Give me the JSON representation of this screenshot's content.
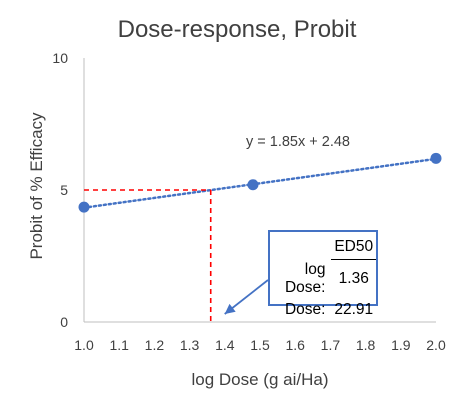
{
  "chart_data": {
    "type": "scatter",
    "title": "Dose-response, Probit",
    "xlabel": "log Dose (g ai/Ha)",
    "ylabel": "Probit of % Efficacy",
    "xlim": [
      1.0,
      2.0
    ],
    "ylim": [
      0,
      10
    ],
    "x_ticks": [
      "1.0",
      "1.1",
      "1.2",
      "1.3",
      "1.4",
      "1.5",
      "1.6",
      "1.7",
      "1.8",
      "1.9",
      "2.0"
    ],
    "y_ticks": [
      "0",
      "5",
      "10"
    ],
    "series": [
      {
        "x": [
          1.0,
          1.48,
          2.0
        ],
        "y": [
          4.35,
          5.2,
          6.2
        ]
      }
    ],
    "trendline": {
      "slope": 1.85,
      "intercept": 2.48,
      "equation": "y = 1.85x + 2.48"
    },
    "ed50": {
      "x": 1.36,
      "y": 5.0
    },
    "grid": false,
    "legend": "none",
    "colors": {
      "point": "#4472c4",
      "trendline": "#4472c4",
      "guide": "#ff0000",
      "axis": "#bfbfbf",
      "text": "#404040"
    },
    "callout": {
      "header": "ED50",
      "rows": [
        {
          "label": "log Dose:",
          "value": "1.36"
        },
        {
          "label": "Dose:",
          "value": "22.91"
        }
      ]
    }
  }
}
